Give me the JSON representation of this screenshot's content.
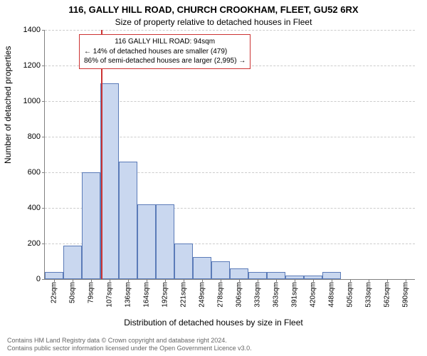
{
  "chart": {
    "type": "histogram",
    "title_main": "116, GALLY HILL ROAD, CHURCH CROOKHAM, FLEET, GU52 6RX",
    "title_sub": "Size of property relative to detached houses in Fleet",
    "y_label": "Number of detached properties",
    "x_label": "Distribution of detached houses by size in Fleet",
    "title_fontsize": 13,
    "subtitle_fontsize": 12,
    "axis_label_fontsize": 12,
    "tick_fontsize": 11,
    "annot_fontsize": 10,
    "bar_fill": "#c9d7ef",
    "bar_stroke": "#5b7bb8",
    "grid_color": "#cccccc",
    "axis_color": "#808080",
    "marker_color": "#cc3333",
    "background_color": "#ffffff",
    "ylim": [
      0,
      1400
    ],
    "yticks": [
      0,
      200,
      400,
      600,
      800,
      1000,
      1200,
      1400
    ],
    "xticks": [
      "22sqm",
      "50sqm",
      "79sqm",
      "107sqm",
      "136sqm",
      "164sqm",
      "192sqm",
      "221sqm",
      "249sqm",
      "278sqm",
      "306sqm",
      "333sqm",
      "363sqm",
      "391sqm",
      "420sqm",
      "448sqm",
      "505sqm",
      "533sqm",
      "562sqm",
      "590sqm"
    ],
    "bars": [
      {
        "x": "22sqm",
        "v": 40
      },
      {
        "x": "50sqm",
        "v": 190
      },
      {
        "x": "79sqm",
        "v": 600
      },
      {
        "x": "107sqm",
        "v": 1100
      },
      {
        "x": "136sqm",
        "v": 660
      },
      {
        "x": "164sqm",
        "v": 420
      },
      {
        "x": "192sqm",
        "v": 420
      },
      {
        "x": "221sqm",
        "v": 200
      },
      {
        "x": "249sqm",
        "v": 125
      },
      {
        "x": "278sqm",
        "v": 100
      },
      {
        "x": "306sqm",
        "v": 60
      },
      {
        "x": "333sqm",
        "v": 40
      },
      {
        "x": "363sqm",
        "v": 40
      },
      {
        "x": "391sqm",
        "v": 20
      },
      {
        "x": "420sqm",
        "v": 20
      },
      {
        "x": "448sqm",
        "v": 40
      },
      {
        "x": "505sqm",
        "v": 0
      },
      {
        "x": "533sqm",
        "v": 0
      },
      {
        "x": "562sqm",
        "v": 0
      },
      {
        "x": "590sqm",
        "v": 0
      }
    ],
    "marker_position": 94,
    "x_domain": [
      22,
      590
    ],
    "annotation": {
      "line1": "116 GALLY HILL ROAD: 94sqm",
      "line2": "← 14% of detached houses are smaller (479)",
      "line3": "86% of semi-detached houses are larger (2,995) →"
    }
  },
  "footer": {
    "line1": "Contains HM Land Registry data © Crown copyright and database right 2024.",
    "line2": "Contains public sector information licensed under the Open Government Licence v3.0."
  }
}
